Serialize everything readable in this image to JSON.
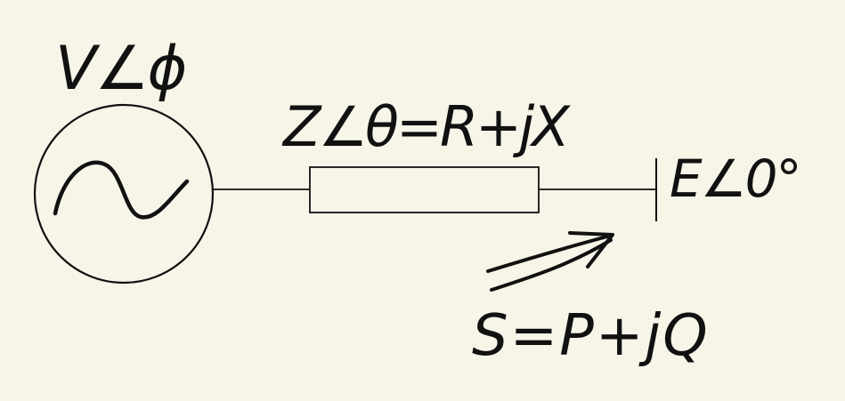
{
  "diagram": {
    "source_label": "V∠ϕ",
    "impedance_label": "Z∠θ=R+jX",
    "bus_label": "E∠0°",
    "power_flow_label": "S=P+jQ"
  },
  "colors": {
    "background": "#f7f4e8",
    "ink": "#111111"
  },
  "icons": {
    "source": "ac-voltage-source-icon",
    "impedance": "resistor-box-icon",
    "bus": "infinite-bus-icon",
    "flow": "power-flow-arrow-icon"
  }
}
